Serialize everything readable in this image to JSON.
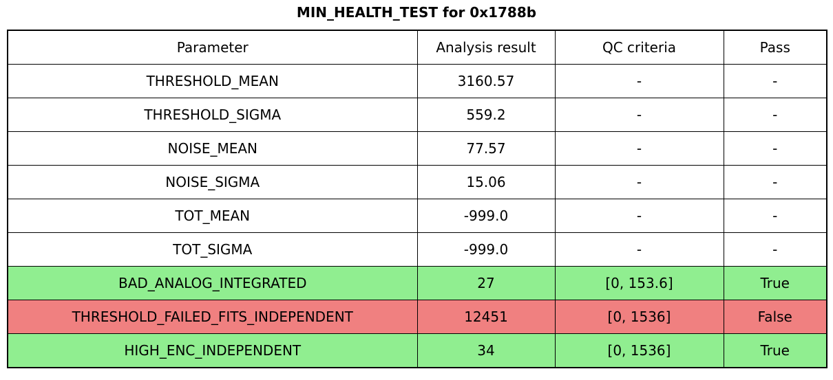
{
  "chart_data": {
    "type": "table",
    "title": "MIN_HEALTH_TEST for 0x1788b",
    "columns": [
      "Parameter",
      "Analysis result",
      "QC criteria",
      "Pass"
    ],
    "rows": [
      {
        "parameter": "THRESHOLD_MEAN",
        "result": "3160.57",
        "qc": "-",
        "pass": "-",
        "status": "none"
      },
      {
        "parameter": "THRESHOLD_SIGMA",
        "result": "559.2",
        "qc": "-",
        "pass": "-",
        "status": "none"
      },
      {
        "parameter": "NOISE_MEAN",
        "result": "77.57",
        "qc": "-",
        "pass": "-",
        "status": "none"
      },
      {
        "parameter": "NOISE_SIGMA",
        "result": "15.06",
        "qc": "-",
        "pass": "-",
        "status": "none"
      },
      {
        "parameter": "TOT_MEAN",
        "result": "-999.0",
        "qc": "-",
        "pass": "-",
        "status": "none"
      },
      {
        "parameter": "TOT_SIGMA",
        "result": "-999.0",
        "qc": "-",
        "pass": "-",
        "status": "none"
      },
      {
        "parameter": "BAD_ANALOG_INTEGRATED",
        "result": "27",
        "qc": "[0, 153.6]",
        "pass": "True",
        "status": "pass"
      },
      {
        "parameter": "THRESHOLD_FAILED_FITS_INDEPENDENT",
        "result": "12451",
        "qc": "[0, 1536]",
        "pass": "False",
        "status": "fail"
      },
      {
        "parameter": "HIGH_ENC_INDEPENDENT",
        "result": "34",
        "qc": "[0, 1536]",
        "pass": "True",
        "status": "pass"
      }
    ]
  },
  "colors": {
    "pass_green": "#90EE90",
    "fail_red": "#F08080",
    "border": "#000000",
    "text": "#000000",
    "background": "#FFFFFF"
  }
}
